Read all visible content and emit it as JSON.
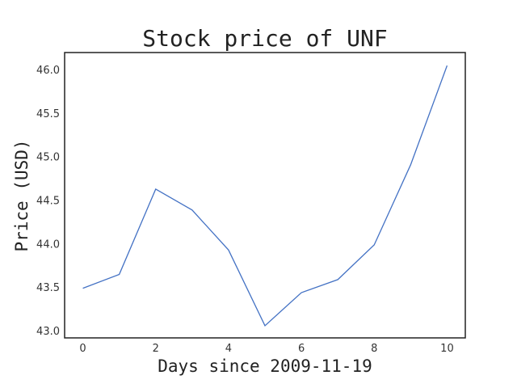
{
  "chart_data": {
    "type": "line",
    "title": "Stock price of UNF",
    "xlabel": "Days since 2009-11-19",
    "ylabel": "Price (USD)",
    "x": [
      0,
      1,
      2,
      3,
      4,
      5,
      6,
      7,
      8,
      9,
      10
    ],
    "series": [
      {
        "name": "",
        "values": [
          43.49,
          43.65,
          44.63,
          44.39,
          43.93,
          43.06,
          43.44,
          43.59,
          43.99,
          44.91,
          46.05
        ],
        "color": "#4472c4"
      }
    ],
    "xlim": [
      -0.5,
      10.5
    ],
    "ylim": [
      42.92,
      46.2
    ],
    "xticks": [
      0,
      2,
      4,
      6,
      8,
      10
    ],
    "yticks": [
      43.0,
      43.5,
      44.0,
      44.5,
      45.0,
      45.5,
      46.0
    ],
    "ytick_format": "0.0",
    "grid": false,
    "legend": false
  }
}
